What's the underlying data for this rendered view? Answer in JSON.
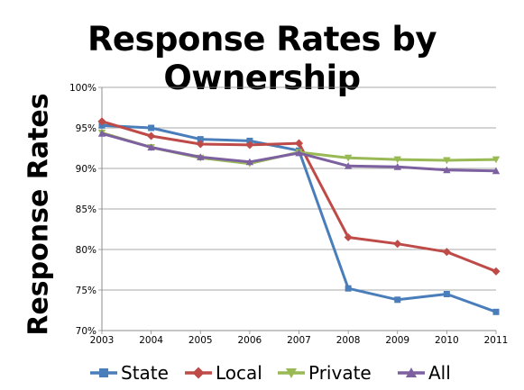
{
  "chart_data": {
    "type": "line",
    "title": "Response Rates by Ownership",
    "xlabel": "",
    "ylabel": "Response Rates",
    "categories": [
      "2003",
      "2004",
      "2005",
      "2006",
      "2007",
      "2008",
      "2009",
      "2010",
      "2011"
    ],
    "ylim": [
      0.7,
      1.0
    ],
    "yticks": [
      "70%",
      "75%",
      "80%",
      "85%",
      "90%",
      "95%",
      "100%"
    ],
    "grid": "horizontal",
    "legend": "bottom",
    "series": [
      {
        "name": "State",
        "color": "#4a7ebb",
        "marker": "square",
        "values": [
          0.953,
          0.95,
          0.936,
          0.934,
          0.922,
          0.752,
          0.738,
          0.745,
          0.723
        ]
      },
      {
        "name": "Local",
        "color": "#be4b48",
        "marker": "diamond",
        "values": [
          0.958,
          0.94,
          0.93,
          0.929,
          0.931,
          0.815,
          0.807,
          0.797,
          0.773
        ]
      },
      {
        "name": "Private",
        "color": "#98b954",
        "marker": "triangle-down",
        "values": [
          0.944,
          0.926,
          0.913,
          0.906,
          0.92,
          0.913,
          0.911,
          0.91,
          0.911
        ]
      },
      {
        "name": "All",
        "color": "#7d60a0",
        "marker": "triangle-up",
        "values": [
          0.943,
          0.926,
          0.914,
          0.908,
          0.919,
          0.903,
          0.902,
          0.898,
          0.897
        ]
      }
    ]
  }
}
